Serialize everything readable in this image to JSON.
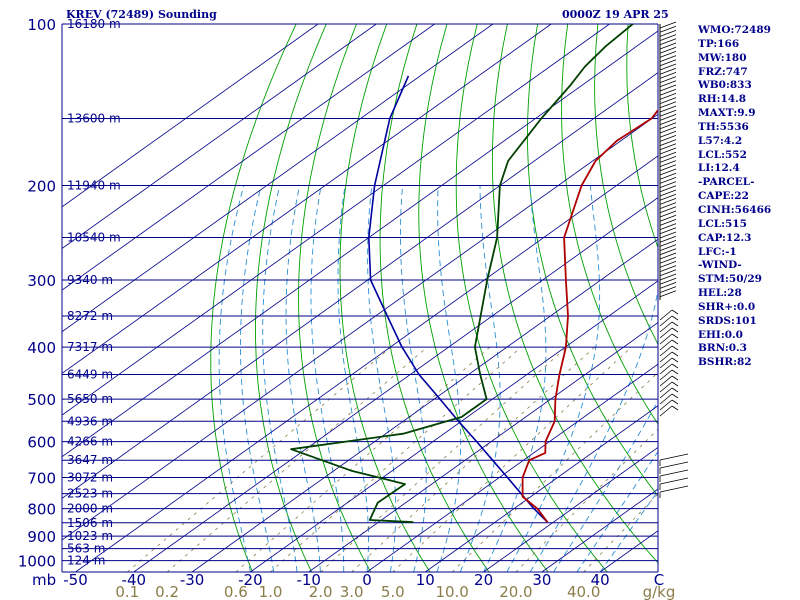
{
  "title_left": "KREV (72489) Sounding",
  "title_right": "0000Z 19 APR 25",
  "colors": {
    "isobar": "#00008b",
    "isotherm": "#00008b",
    "dry_adiabat": "#00a000",
    "moist_adiabat": "#2a8fd6",
    "mixing_ratio": "#8b7d4a",
    "temperature": "#b00000",
    "dewpoint": "#004000",
    "parcel": "#0000a0",
    "label": "#00008b",
    "mixing_label": "#8b7d4a",
    "wind": "#000000"
  },
  "stats": [
    "WMO:72489",
    "TP:166",
    "MW:180",
    "FRZ:747",
    "WB0:833",
    "RH:14.8",
    "MAXT:9.9",
    "TH:5536",
    "L57:4.2",
    "LCL:552",
    "LI:12.4",
    "-PARCEL-",
    "CAPE:22",
    "CINH:56466",
    "LCL:515",
    "CAP:12.3",
    "LFC:-1",
    "-WIND-",
    "STM:50/29",
    "HEL:28",
    "SHR+:0.0",
    "SRDS:101",
    "EHI:0.0",
    "BRN:0.3",
    "BSHR:82"
  ],
  "chart_data": {
    "type": "skew-t",
    "pressure_axis_unit": "mb",
    "temperature_axis_unit": "C",
    "mixing_ratio_unit": "g/kg",
    "pressure_ticks": [
      "100",
      "200",
      "300",
      "400",
      "500",
      "600",
      "700",
      "800",
      "900",
      "1000"
    ],
    "pressure_tick_values": [
      100,
      200,
      300,
      400,
      500,
      600,
      700,
      800,
      900,
      1000
    ],
    "temperature_ticks": [
      "-50",
      "-40",
      "-30",
      "-20",
      "-10",
      "0",
      "10",
      "20",
      "30",
      "40"
    ],
    "temperature_tick_values": [
      -50,
      -40,
      -30,
      -20,
      -10,
      0,
      10,
      20,
      30,
      40
    ],
    "mixing_ratio_labels": [
      "0.1",
      "0.2",
      "0.6",
      "1.0",
      "2.0",
      "3.0",
      "5.0",
      "10.0",
      "20.0",
      "40.0"
    ],
    "mixing_ratio_values": [
      0.1,
      0.2,
      0.6,
      1.0,
      2.0,
      3.0,
      5.0,
      10.0,
      20.0,
      40.0
    ],
    "height_levels": [
      {
        "p": 100,
        "label": "16180 m"
      },
      {
        "p": 150,
        "label": "13600 m"
      },
      {
        "p": 200,
        "label": "11940 m"
      },
      {
        "p": 250,
        "label": "10540 m"
      },
      {
        "p": 300,
        "label": "9340 m"
      },
      {
        "p": 350,
        "label": "8272 m"
      },
      {
        "p": 400,
        "label": "7317 m"
      },
      {
        "p": 450,
        "label": "6449 m"
      },
      {
        "p": 500,
        "label": "5650 m"
      },
      {
        "p": 550,
        "label": "4936 m"
      },
      {
        "p": 600,
        "label": "4266 m"
      },
      {
        "p": 650,
        "label": "3647 m"
      },
      {
        "p": 700,
        "label": "3072 m"
      },
      {
        "p": 750,
        "label": "2523 m"
      },
      {
        "p": 800,
        "label": "2000 m"
      },
      {
        "p": 850,
        "label": "1506 m"
      },
      {
        "p": 900,
        "label": "1023 m"
      },
      {
        "p": 950,
        "label": "563 m"
      },
      {
        "p": 1000,
        "label": "124 m"
      }
    ],
    "temperature_profile": [
      {
        "p": 848,
        "t": 19.0
      },
      {
        "p": 800,
        "t": 14.0
      },
      {
        "p": 760,
        "t": 8.6
      },
      {
        "p": 700,
        "t": 4.0
      },
      {
        "p": 650,
        "t": 1.0
      },
      {
        "p": 630,
        "t": 2.0
      },
      {
        "p": 600,
        "t": -0.7
      },
      {
        "p": 550,
        "t": -4.0
      },
      {
        "p": 500,
        "t": -9.2
      },
      {
        "p": 450,
        "t": -14.4
      },
      {
        "p": 400,
        "t": -19.9
      },
      {
        "p": 350,
        "t": -27.0
      },
      {
        "p": 300,
        "t": -36.0
      },
      {
        "p": 250,
        "t": -46.5
      },
      {
        "p": 200,
        "t": -56.0
      },
      {
        "p": 180,
        "t": -59.5
      },
      {
        "p": 165,
        "t": -60.7
      },
      {
        "p": 150,
        "t": -60.1
      },
      {
        "p": 130,
        "t": -63.6
      },
      {
        "p": 120,
        "t": -63.8
      },
      {
        "p": 110,
        "t": -68.5
      },
      {
        "p": 100,
        "t": -68.2
      }
    ],
    "dewpoint_profile": [
      {
        "p": 848,
        "t": -4.0
      },
      {
        "p": 840,
        "t": -12.0
      },
      {
        "p": 780,
        "t": -14.8
      },
      {
        "p": 720,
        "t": -14.6
      },
      {
        "p": 680,
        "t": -27.0
      },
      {
        "p": 620,
        "t": -42.5
      },
      {
        "p": 580,
        "t": -27.0
      },
      {
        "p": 540,
        "t": -21.0
      },
      {
        "p": 500,
        "t": -21.0
      },
      {
        "p": 450,
        "t": -28.0
      },
      {
        "p": 400,
        "t": -35.5
      },
      {
        "p": 350,
        "t": -42.0
      },
      {
        "p": 300,
        "t": -49.5
      },
      {
        "p": 250,
        "t": -58.0
      },
      {
        "p": 200,
        "t": -70.0
      },
      {
        "p": 180,
        "t": -74.5
      },
      {
        "p": 150,
        "t": -79.0
      },
      {
        "p": 130,
        "t": -82.0
      },
      {
        "p": 120,
        "t": -84.0
      },
      {
        "p": 110,
        "t": -85.3
      },
      {
        "p": 100,
        "t": -86.0
      }
    ],
    "parcel_profile": [
      {
        "p": 848,
        "t": 19.0
      },
      {
        "p": 800,
        "t": 13.4
      },
      {
        "p": 750,
        "t": 7.6
      },
      {
        "p": 700,
        "t": 1.4
      },
      {
        "p": 650,
        "t": -5.3
      },
      {
        "p": 600,
        "t": -12.5
      },
      {
        "p": 550,
        "t": -20.5
      },
      {
        "p": 500,
        "t": -29.0
      },
      {
        "p": 450,
        "t": -38.5
      },
      {
        "p": 400,
        "t": -48.0
      },
      {
        "p": 350,
        "t": -58.0
      },
      {
        "p": 300,
        "t": -69.5
      },
      {
        "p": 250,
        "t": -80.0
      },
      {
        "p": 200,
        "t": -91.5
      },
      {
        "p": 150,
        "t": -105.0
      },
      {
        "p": 125,
        "t": -112.0
      }
    ]
  }
}
